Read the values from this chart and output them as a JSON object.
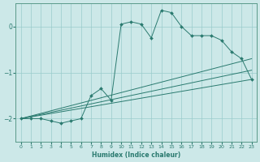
{
  "xlabel": "Humidex (Indice chaleur)",
  "background_color": "#cce8e8",
  "grid_color": "#99cccc",
  "line_color": "#2a7a6f",
  "xlim": [
    -0.5,
    23.5
  ],
  "ylim": [
    -2.5,
    0.5
  ],
  "yticks": [
    -2,
    -1,
    0
  ],
  "xticks": [
    0,
    1,
    2,
    3,
    4,
    5,
    6,
    7,
    8,
    9,
    10,
    11,
    12,
    13,
    14,
    15,
    16,
    17,
    18,
    19,
    20,
    21,
    22,
    23
  ],
  "series": {
    "main": {
      "x": [
        0,
        1,
        2,
        3,
        4,
        5,
        6,
        7,
        8,
        9,
        10,
        11,
        12,
        13,
        14,
        15,
        16,
        17,
        18,
        19,
        20,
        21,
        22,
        23
      ],
      "y": [
        -2.0,
        -2.0,
        -2.0,
        -2.05,
        -2.1,
        -2.05,
        -2.0,
        -1.5,
        -1.35,
        -1.6,
        0.05,
        0.1,
        0.05,
        -0.25,
        0.35,
        0.3,
        0.0,
        -0.2,
        -0.2,
        -0.2,
        -0.3,
        -0.55,
        -0.7,
        -1.15
      ]
    },
    "line_upper": {
      "x": [
        0,
        23
      ],
      "y": [
        -2.0,
        -0.7
      ]
    },
    "line_mid": {
      "x": [
        0,
        23
      ],
      "y": [
        -2.0,
        -0.95
      ]
    },
    "line_lower": {
      "x": [
        0,
        23
      ],
      "y": [
        -2.0,
        -1.15
      ]
    },
    "zigzag": {
      "x": [
        0,
        1,
        2,
        3,
        4,
        5,
        6,
        7,
        8,
        9,
        10,
        11,
        12,
        13,
        14,
        15,
        16,
        17,
        18,
        19,
        20,
        21,
        22,
        23
      ],
      "y": [
        -2.0,
        -2.0,
        -2.0,
        -2.05,
        -2.1,
        -2.05,
        -2.0,
        -1.5,
        -1.35,
        -1.6,
        0.05,
        0.1,
        0.05,
        -0.25,
        0.35,
        0.3,
        0.0,
        -0.2,
        -0.2,
        -0.2,
        -0.3,
        -0.55,
        -0.7,
        -1.15
      ]
    }
  }
}
